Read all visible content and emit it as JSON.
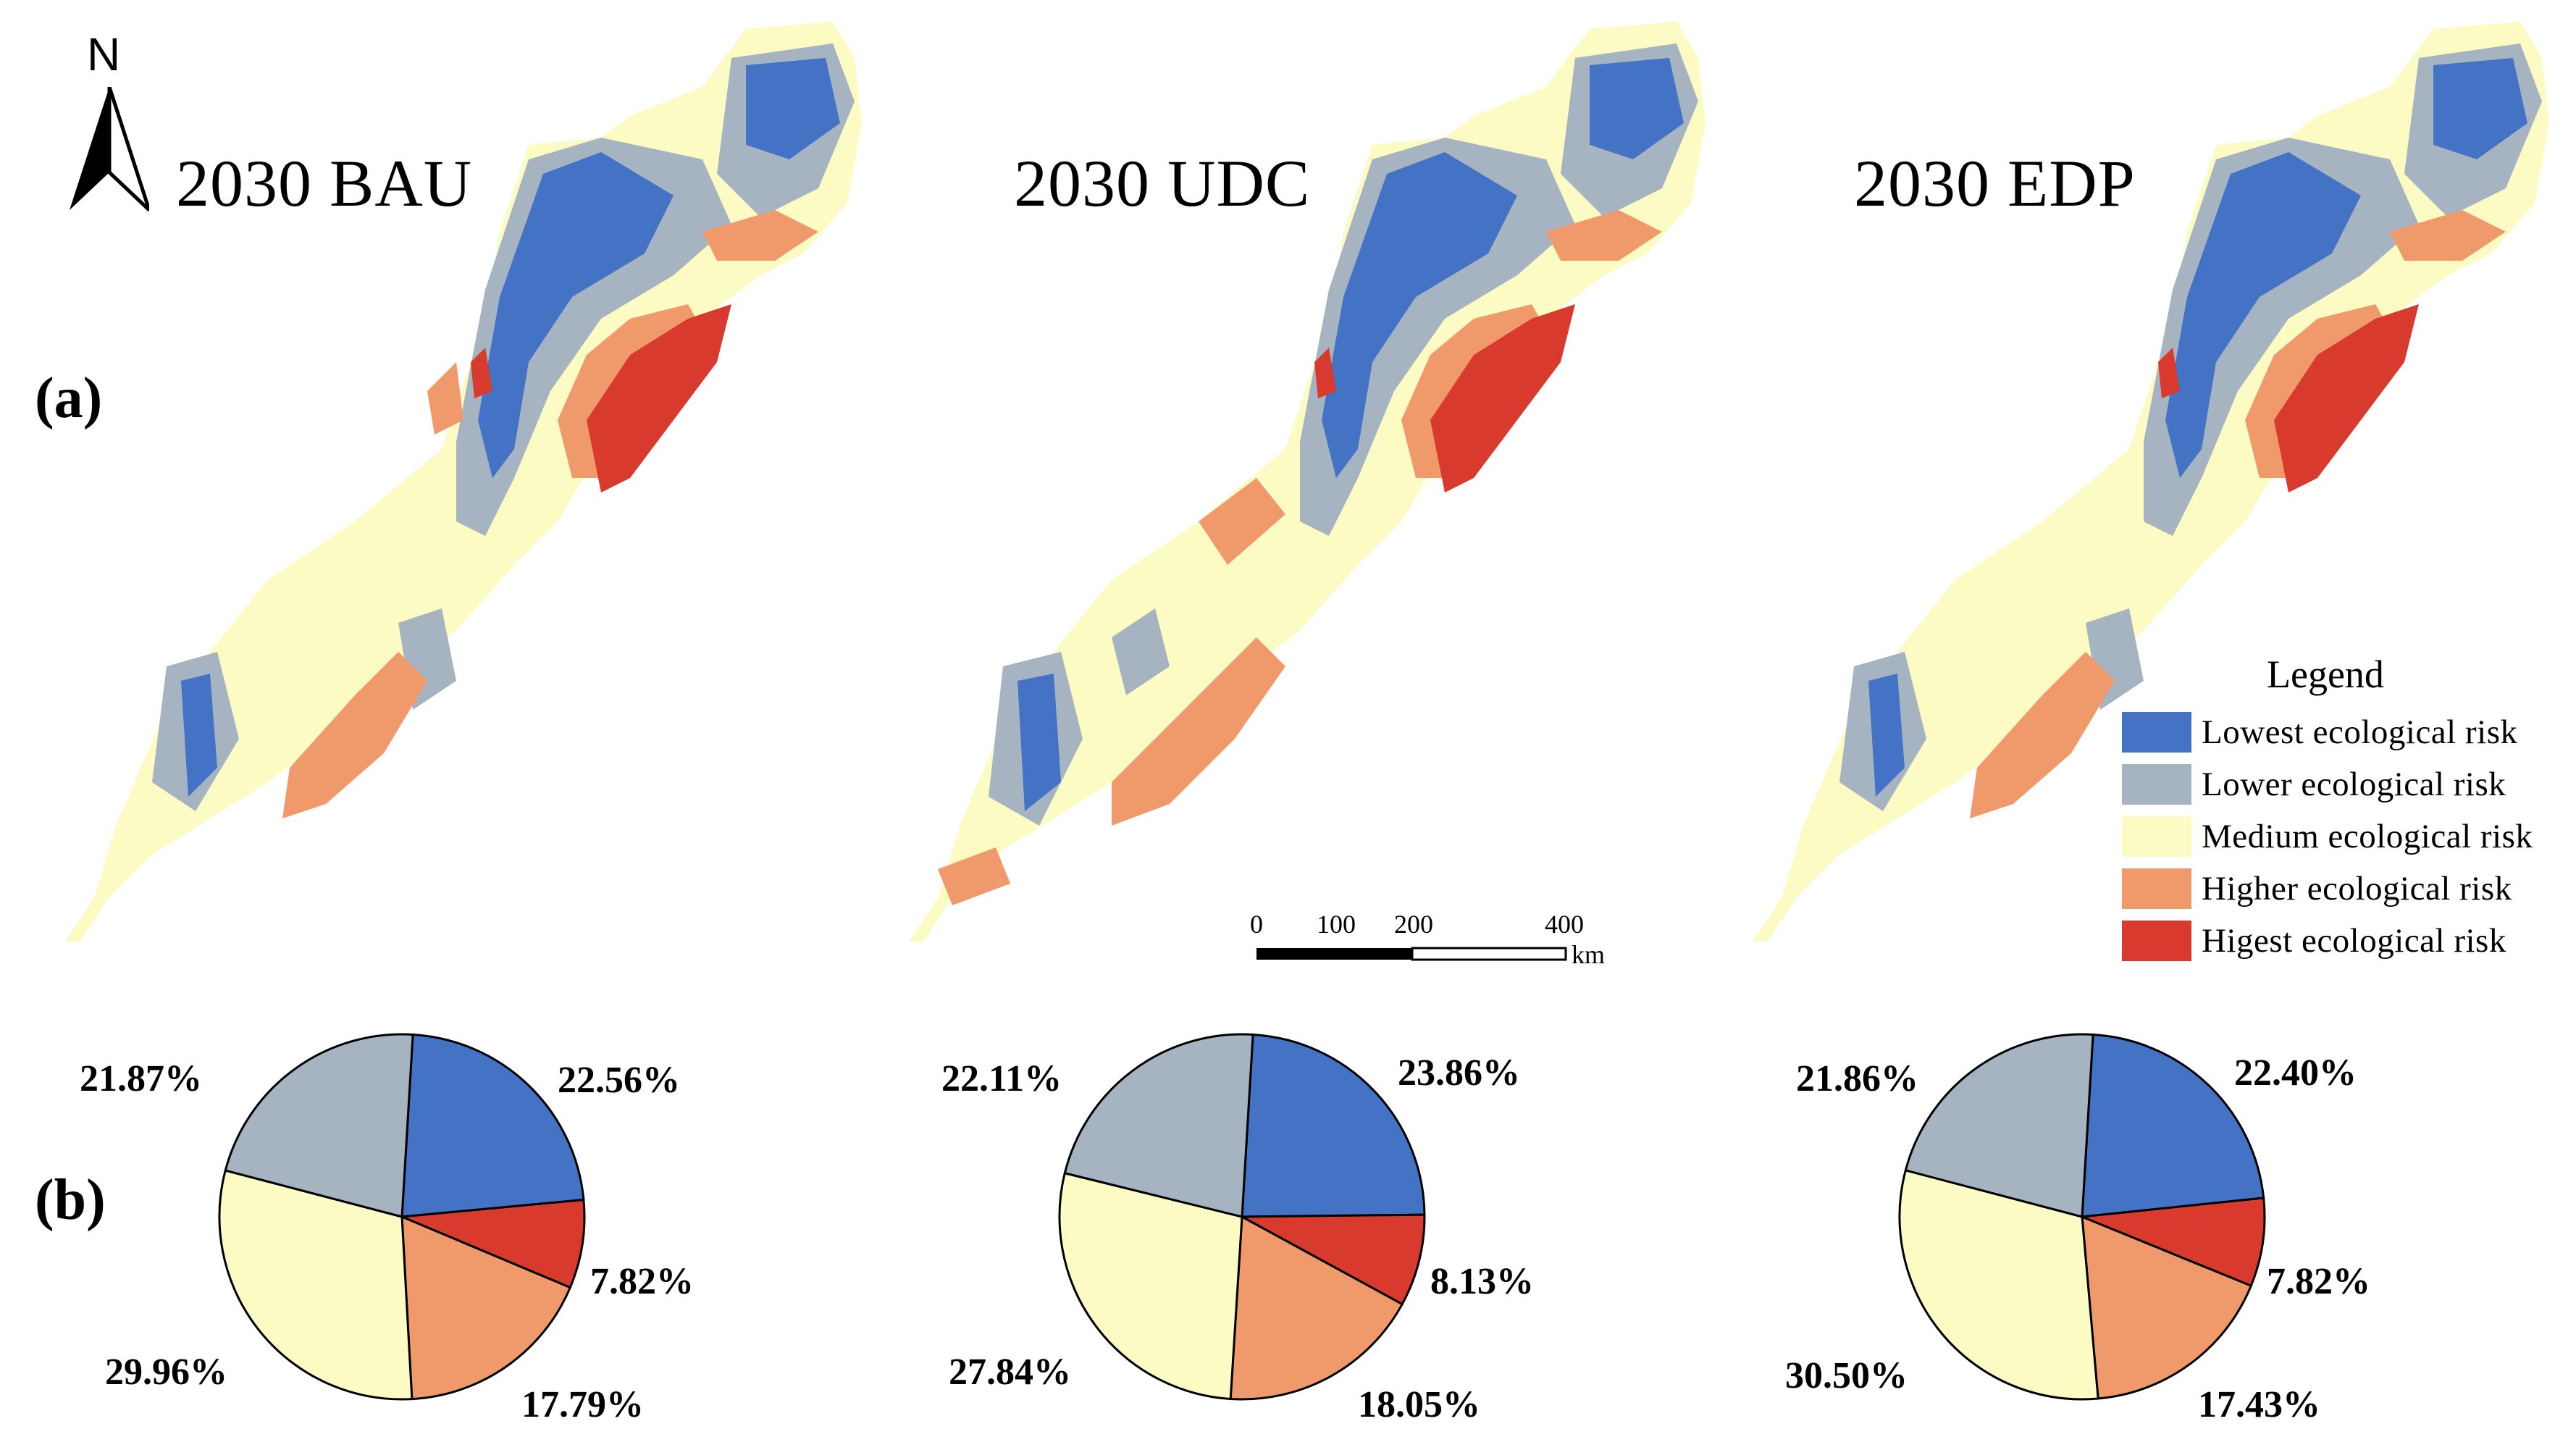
{
  "panels": {
    "a": "(a)",
    "b": "(b)"
  },
  "north_arrow": {
    "letter": "N"
  },
  "maps": [
    {
      "title": "2030 BAU"
    },
    {
      "title": "2030 UDC"
    },
    {
      "title": "2030 EDP"
    }
  ],
  "legend": {
    "title": "Legend",
    "items": [
      {
        "label": "Lowest ecological risk",
        "color": "#4472c4"
      },
      {
        "label": "Lower ecological risk",
        "color": "#a6b4c1"
      },
      {
        "label": "Medium ecological risk",
        "color": "#fbfbc3"
      },
      {
        "label": "Higher ecological risk",
        "color": "#f09a6b"
      },
      {
        "label": "Higest ecological risk",
        "color": "#d83a2e"
      }
    ]
  },
  "scale_bar": {
    "ticks": [
      "0",
      "100",
      "200",
      "400"
    ],
    "unit": "km"
  },
  "chart_data": [
    {
      "type": "pie",
      "title": "2030 BAU",
      "labels": [
        "Lowest ecological risk",
        "Higest ecological risk",
        "Higher ecological risk",
        "Medium ecological risk",
        "Lower ecological risk"
      ],
      "values": [
        22.56,
        7.82,
        17.79,
        29.96,
        21.87
      ],
      "value_labels": [
        "22.56%",
        "7.82%",
        "17.79%",
        "29.96%",
        "21.87%"
      ],
      "colors": [
        "#4472c4",
        "#d83a2e",
        "#f09a6b",
        "#fbfbc3",
        "#a6b4c1"
      ]
    },
    {
      "type": "pie",
      "title": "2030 UDC",
      "labels": [
        "Lowest ecological risk",
        "Higest ecological risk",
        "Higher ecological risk",
        "Medium ecological risk",
        "Lower ecological risk"
      ],
      "values": [
        23.86,
        8.13,
        18.05,
        27.84,
        22.11
      ],
      "value_labels": [
        "23.86%",
        "8.13%",
        "18.05%",
        "27.84%",
        "22.11%"
      ],
      "colors": [
        "#4472c4",
        "#d83a2e",
        "#f09a6b",
        "#fbfbc3",
        "#a6b4c1"
      ]
    },
    {
      "type": "pie",
      "title": "2030 EDP",
      "labels": [
        "Lowest ecological risk",
        "Higest ecological risk",
        "Higher ecological risk",
        "Medium ecological risk",
        "Lower ecological risk"
      ],
      "values": [
        22.4,
        7.82,
        17.43,
        30.5,
        21.86
      ],
      "value_labels": [
        "22.40%",
        "7.82%",
        "17.43%",
        "30.50%",
        "21.86%"
      ],
      "colors": [
        "#4472c4",
        "#d83a2e",
        "#f09a6b",
        "#fbfbc3",
        "#a6b4c1"
      ]
    }
  ]
}
